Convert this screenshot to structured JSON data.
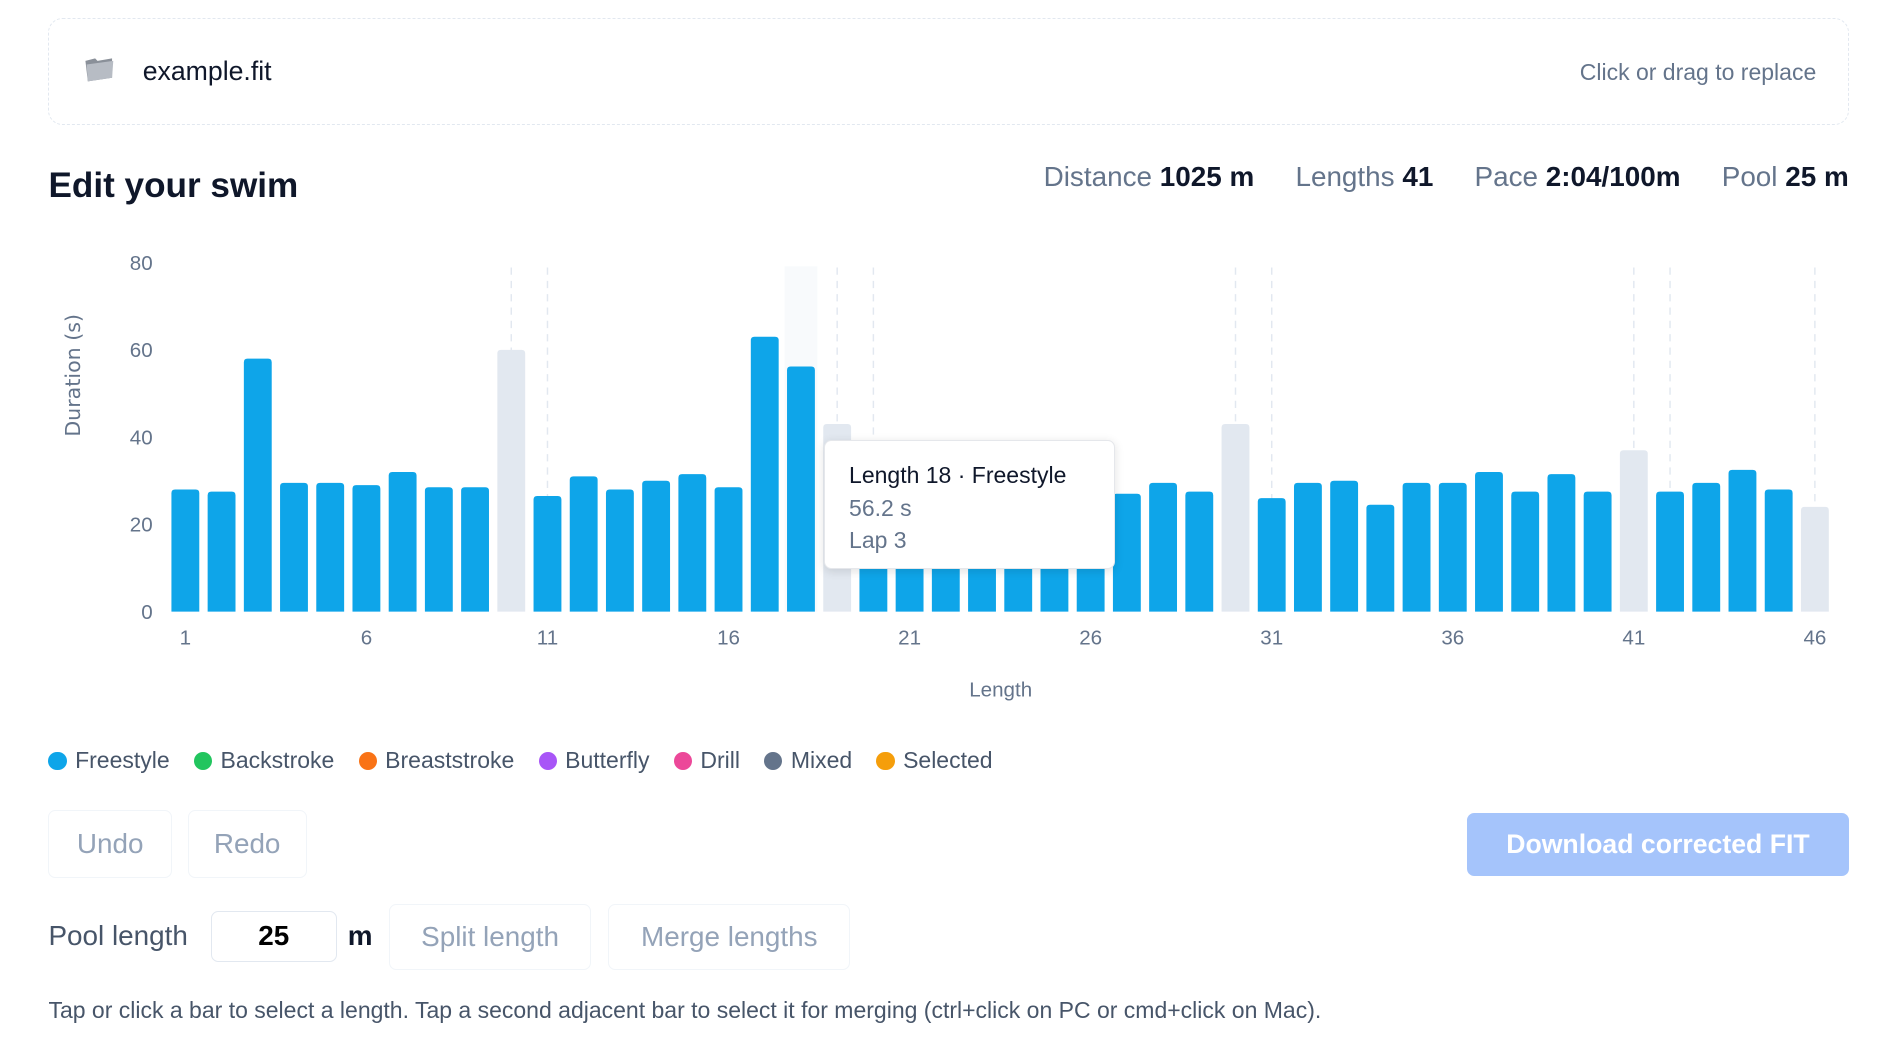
{
  "file": {
    "name": "example.fit",
    "replace_hint": "Click or drag to replace",
    "icon": "folder-icon"
  },
  "title": "Edit your swim",
  "stats": [
    {
      "label": "Distance",
      "value": "1025 m"
    },
    {
      "label": "Lengths",
      "value": "41"
    },
    {
      "label": "Pace",
      "value": "2:04/100m"
    },
    {
      "label": "Pool",
      "value": "25 m"
    }
  ],
  "tooltip": {
    "title": "Length 18 · Freestyle",
    "duration": "56.2 s",
    "lap": "Lap 3"
  },
  "legend": [
    {
      "label": "Freestyle",
      "color": "#0ea5e9"
    },
    {
      "label": "Backstroke",
      "color": "#22c55e"
    },
    {
      "label": "Breaststroke",
      "color": "#f97316"
    },
    {
      "label": "Butterfly",
      "color": "#a855f7"
    },
    {
      "label": "Drill",
      "color": "#ec4899"
    },
    {
      "label": "Mixed",
      "color": "#64748b"
    },
    {
      "label": "Selected",
      "color": "#f59e0b"
    }
  ],
  "buttons": {
    "undo": "Undo",
    "redo": "Redo",
    "download": "Download corrected FIT",
    "split": "Split length",
    "merge": "Merge lengths"
  },
  "pool": {
    "label": "Pool length",
    "value": "25",
    "unit": "m"
  },
  "help": "Tap or click a bar to select a length. Tap a second adjacent bar to select it for merging (ctrl+click on PC or cmd+click on Mac).",
  "chart_data": {
    "type": "bar",
    "xlabel": "Length",
    "ylabel": "Duration (s)",
    "ylim": [
      0,
      80
    ],
    "yticks": [
      0,
      20,
      40,
      60,
      80
    ],
    "xticks": [
      1,
      6,
      11,
      16,
      21,
      26,
      31,
      36,
      41,
      46
    ],
    "hovered": 18,
    "colors": {
      "active": "#0ea5e9",
      "rest": "#e2e8f0"
    },
    "values": [
      28,
      27.5,
      58,
      29.5,
      29.5,
      29,
      32,
      28.5,
      28.5,
      60,
      26.5,
      31,
      28,
      30,
      31.5,
      28.5,
      63,
      56.2,
      43,
      28,
      28,
      28,
      28,
      28,
      28,
      28,
      27,
      29.5,
      27.5,
      43,
      26,
      29.5,
      30,
      24.5,
      29.5,
      29.5,
      32,
      27.5,
      31.5,
      27.5,
      37,
      27.5,
      29.5,
      32.5,
      28,
      24
    ],
    "rest": [
      10,
      19,
      30,
      41,
      46
    ],
    "lap_boundaries": [
      10,
      11,
      19,
      20,
      30,
      31,
      41,
      42,
      46
    ]
  }
}
